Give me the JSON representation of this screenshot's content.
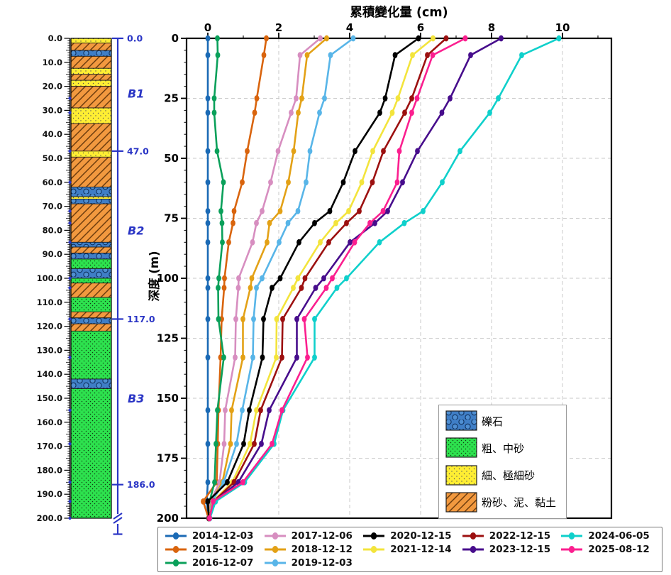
{
  "chart_data": [
    {
      "type": "line",
      "title": "累積變化量 (cm)",
      "ylabel": "深度 (m)",
      "xlabel_position": "top",
      "xlim": [
        -0.6,
        11.4
      ],
      "ylim": [
        0,
        200
      ],
      "xticks": [
        0,
        2,
        4,
        6,
        8,
        10
      ],
      "yticks": [
        0,
        25,
        50,
        75,
        100,
        125,
        150,
        175,
        200
      ],
      "grid": "dashed",
      "depths": [
        0,
        7,
        25,
        31,
        47,
        60,
        72,
        77,
        85,
        100,
        104,
        117,
        133,
        155,
        169,
        185,
        193,
        200
      ],
      "series": [
        {
          "name": "2014-12-03",
          "color": "#1b6ab5",
          "values": [
            0,
            0,
            0,
            0,
            0,
            0,
            0,
            0,
            0,
            0,
            0,
            0,
            0,
            0,
            0,
            0,
            -0.03,
            0.02
          ]
        },
        {
          "name": "2015-12-09",
          "color": "#d9640d",
          "values": [
            1.65,
            1.58,
            1.38,
            1.32,
            1.11,
            0.97,
            0.74,
            0.71,
            0.59,
            0.47,
            0.46,
            0.39,
            0.36,
            0.3,
            0.28,
            0.25,
            -0.13,
            0.02
          ]
        },
        {
          "name": "2016-12-07",
          "color": "#0aa05a",
          "values": [
            0.27,
            0.28,
            0.18,
            0.18,
            0.26,
            0.44,
            0.37,
            0.4,
            0.41,
            0.31,
            0.29,
            0.3,
            0.45,
            0.27,
            0.23,
            0.19,
            0.05,
            0.02
          ]
        },
        {
          "name": "2017-12-06",
          "color": "#d78ec0",
          "values": [
            3.17,
            2.6,
            2.49,
            2.35,
            1.98,
            1.77,
            1.53,
            1.37,
            1.26,
            0.87,
            0.86,
            0.79,
            0.77,
            0.49,
            0.46,
            0.33,
            0.08,
            0.02
          ]
        },
        {
          "name": "2018-12-12",
          "color": "#e3a116",
          "values": [
            3.35,
            2.8,
            2.65,
            2.55,
            2.42,
            2.27,
            2.04,
            1.74,
            1.67,
            1.24,
            1.2,
            0.99,
            0.99,
            0.67,
            0.64,
            0.41,
            0.1,
            0.03
          ]
        },
        {
          "name": "2019-12-03",
          "color": "#58b5e8",
          "values": [
            4.1,
            3.46,
            3.29,
            3.15,
            2.88,
            2.77,
            2.54,
            2.26,
            2.01,
            1.53,
            1.37,
            1.29,
            1.27,
            0.97,
            0.81,
            0.45,
            0.12,
            0.03
          ]
        },
        {
          "name": "2020-12-15",
          "color": "#000000",
          "values": [
            5.94,
            5.28,
            5.0,
            4.85,
            4.15,
            3.82,
            3.44,
            3.01,
            2.57,
            2.04,
            1.81,
            1.57,
            1.54,
            1.17,
            1.01,
            0.55,
            0.0,
            0.03
          ]
        },
        {
          "name": "2021-12-14",
          "color": "#f3e43c",
          "values": [
            6.35,
            5.77,
            5.36,
            5.2,
            4.65,
            4.34,
            3.97,
            3.61,
            3.17,
            2.54,
            2.41,
            1.94,
            1.93,
            1.37,
            1.19,
            0.69,
            0.14,
            0.04
          ]
        },
        {
          "name": "2022-12-15",
          "color": "#9c1010",
          "values": [
            6.72,
            6.19,
            5.75,
            5.55,
            4.95,
            4.64,
            4.27,
            3.91,
            3.41,
            2.74,
            2.64,
            2.11,
            2.09,
            1.49,
            1.31,
            0.74,
            0.16,
            0.04
          ]
        },
        {
          "name": "2023-12-15",
          "color": "#470d8c",
          "values": [
            8.27,
            7.41,
            6.83,
            6.6,
            5.91,
            5.49,
            5.07,
            4.71,
            4.01,
            3.27,
            3.04,
            2.51,
            2.51,
            1.73,
            1.51,
            0.86,
            0.18,
            0.05
          ]
        },
        {
          "name": "2024-06-05",
          "color": "#0fd0cb",
          "values": [
            9.9,
            8.85,
            8.19,
            7.95,
            7.11,
            6.61,
            6.07,
            5.54,
            4.84,
            3.91,
            3.64,
            3.01,
            3.01,
            2.12,
            1.87,
            1.04,
            0.22,
            0.06
          ]
        },
        {
          "name": "2025-08-12",
          "color": "#fb1f8f",
          "values": [
            7.26,
            6.34,
            5.9,
            5.75,
            5.4,
            5.34,
            4.94,
            4.57,
            4.14,
            3.51,
            3.34,
            2.72,
            2.81,
            2.09,
            1.81,
            0.99,
            0.15,
            0.05
          ]
        }
      ],
      "legend_columns": [
        3,
        3,
        2,
        2,
        2
      ]
    },
    {
      "type": "stratigraphy-column",
      "depth_tick_labels": [
        "0.0",
        "10.0",
        "20.0",
        "30.0",
        "40.0",
        "50.0",
        "60.0",
        "70.0",
        "80.0",
        "90.0",
        "100.0",
        "110.0",
        "120.0",
        "130.0",
        "140.0",
        "150.0",
        "160.0",
        "170.0",
        "180.0",
        "190.0",
        "200.0"
      ],
      "lithology": {
        "gravel": {
          "label": "礫石",
          "color": "#3f7ec6"
        },
        "coarse": {
          "label": "粗、中砂",
          "color": "#2de24e"
        },
        "fine": {
          "label": "細、極細砂",
          "color": "#ffee33"
        },
        "silt": {
          "label": "粉砂、泥、黏土",
          "color": "#f2993f"
        }
      },
      "lithology_order": [
        "gravel",
        "coarse",
        "fine",
        "silt"
      ],
      "layers": [
        {
          "top": 0,
          "bottom": 2,
          "type": "fine"
        },
        {
          "top": 2,
          "bottom": 5,
          "type": "silt"
        },
        {
          "top": 5,
          "bottom": 7.5,
          "type": "gravel"
        },
        {
          "top": 7.5,
          "bottom": 12.5,
          "type": "silt"
        },
        {
          "top": 12.5,
          "bottom": 15,
          "type": "fine"
        },
        {
          "top": 15,
          "bottom": 17.5,
          "type": "silt"
        },
        {
          "top": 17.5,
          "bottom": 20,
          "type": "fine"
        },
        {
          "top": 20,
          "bottom": 29,
          "type": "silt"
        },
        {
          "top": 29,
          "bottom": 35.5,
          "type": "fine"
        },
        {
          "top": 35.5,
          "bottom": 47,
          "type": "silt"
        },
        {
          "top": 47,
          "bottom": 49.5,
          "type": "fine"
        },
        {
          "top": 49.5,
          "bottom": 62,
          "type": "silt"
        },
        {
          "top": 62,
          "bottom": 66,
          "type": "gravel"
        },
        {
          "top": 66,
          "bottom": 67,
          "type": "fine"
        },
        {
          "top": 67,
          "bottom": 69,
          "type": "gravel"
        },
        {
          "top": 69,
          "bottom": 85,
          "type": "silt"
        },
        {
          "top": 85,
          "bottom": 87,
          "type": "gravel"
        },
        {
          "top": 87,
          "bottom": 89.5,
          "type": "silt"
        },
        {
          "top": 89.5,
          "bottom": 92,
          "type": "gravel"
        },
        {
          "top": 92,
          "bottom": 96,
          "type": "coarse"
        },
        {
          "top": 96,
          "bottom": 100,
          "type": "gravel"
        },
        {
          "top": 100,
          "bottom": 102,
          "type": "coarse"
        },
        {
          "top": 102,
          "bottom": 108,
          "type": "silt"
        },
        {
          "top": 108,
          "bottom": 114,
          "type": "coarse"
        },
        {
          "top": 114,
          "bottom": 116.5,
          "type": "silt"
        },
        {
          "top": 116.5,
          "bottom": 119,
          "type": "gravel"
        },
        {
          "top": 119,
          "bottom": 122,
          "type": "silt"
        },
        {
          "top": 122,
          "bottom": 142,
          "type": "coarse"
        },
        {
          "top": 142,
          "bottom": 146,
          "type": "gravel"
        },
        {
          "top": 146,
          "bottom": 200,
          "type": "coarse"
        }
      ],
      "anchor_color": "#2a35c5",
      "anchors": [
        {
          "depth": 0,
          "label": "0.0"
        },
        {
          "depth": 47,
          "label": "47.0"
        },
        {
          "depth": 117,
          "label": "117.0"
        },
        {
          "depth": 186,
          "label": "186.0"
        }
      ],
      "sections": [
        {
          "label": "B1",
          "depth": 23
        },
        {
          "label": "B2",
          "depth": 80
        },
        {
          "label": "B3",
          "depth": 150
        }
      ]
    }
  ]
}
